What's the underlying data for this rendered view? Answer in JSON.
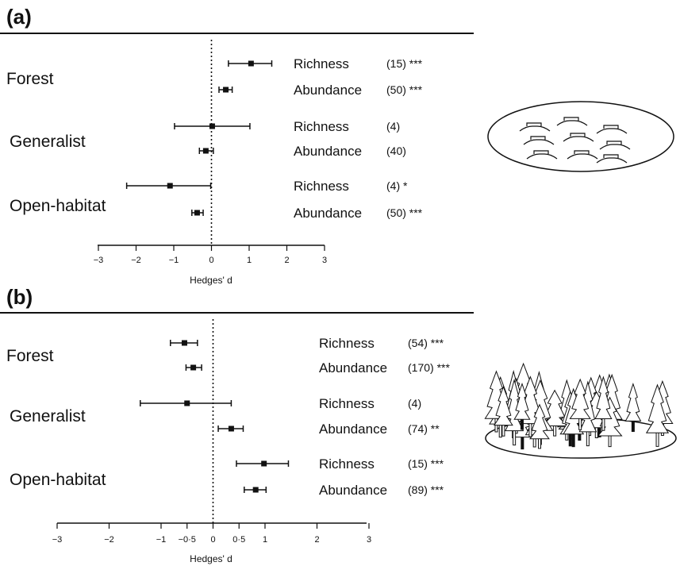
{
  "chart_data": [
    {
      "panel": "(a)",
      "type": "forest-plot",
      "xlabel": "Hedges' d",
      "xlim": [
        -3,
        3
      ],
      "ticks": [
        -3,
        -2,
        -1,
        0,
        1,
        2,
        3
      ],
      "tick_labels": [
        "−3",
        "−2",
        "−1",
        "0",
        "1",
        "2",
        "3"
      ],
      "groups": [
        {
          "name": "Forest",
          "rows": [
            {
              "measure": "Richness",
              "n": "(15)",
              "sig": "***",
              "d": 1.05,
              "lo": 0.45,
              "hi": 1.6
            },
            {
              "measure": "Abundance",
              "n": "(50)",
              "sig": "***",
              "d": 0.38,
              "lo": 0.2,
              "hi": 0.55
            }
          ]
        },
        {
          "name": "Generalist",
          "rows": [
            {
              "measure": "Richness",
              "n": "(4)",
              "sig": "",
              "d": 0.02,
              "lo": -0.98,
              "hi": 1.02
            },
            {
              "measure": "Abundance",
              "n": "(40)",
              "sig": "",
              "d": -0.15,
              "lo": -0.32,
              "hi": 0.05
            }
          ]
        },
        {
          "name": "Open-habitat",
          "rows": [
            {
              "measure": "Richness",
              "n": "(4)",
              "sig": "*",
              "d": -1.1,
              "lo": -2.25,
              "hi": -0.02
            },
            {
              "measure": "Abundance",
              "n": "(50)",
              "sig": "***",
              "d": -0.38,
              "lo": -0.52,
              "hi": -0.22
            }
          ]
        }
      ]
    },
    {
      "panel": "(b)",
      "type": "forest-plot",
      "xlabel": "Hedges' d",
      "xlim": [
        -3,
        3
      ],
      "ticks": [
        -3,
        -2,
        -1,
        -0.5,
        0,
        0.5,
        1,
        2,
        3
      ],
      "tick_labels": [
        "−3",
        "−2",
        "−1",
        "−0·5",
        "0",
        "0·5",
        "1",
        "2",
        "3"
      ],
      "groups": [
        {
          "name": "Forest",
          "rows": [
            {
              "measure": "Richness",
              "n": "(54)",
              "sig": "***",
              "d": -0.55,
              "lo": -0.82,
              "hi": -0.3
            },
            {
              "measure": "Abundance",
              "n": "(170)",
              "sig": "***",
              "d": -0.38,
              "lo": -0.52,
              "hi": -0.22
            }
          ]
        },
        {
          "name": "Generalist",
          "rows": [
            {
              "measure": "Richness",
              "n": "(4)",
              "sig": "",
              "d": -0.5,
              "lo": -1.4,
              "hi": 0.35
            },
            {
              "measure": "Abundance",
              "n": "(74)",
              "sig": "**",
              "d": 0.35,
              "lo": 0.1,
              "hi": 0.58
            }
          ]
        },
        {
          "name": "Open-habitat",
          "rows": [
            {
              "measure": "Richness",
              "n": "(15)",
              "sig": "***",
              "d": 0.98,
              "lo": 0.45,
              "hi": 1.45
            },
            {
              "measure": "Abundance",
              "n": "(89)",
              "sig": "***",
              "d": 0.82,
              "lo": 0.6,
              "hi": 1.02
            }
          ]
        }
      ]
    }
  ],
  "illustrations": {
    "a": "patchy-habitat-icon",
    "b": "forest-icon"
  }
}
